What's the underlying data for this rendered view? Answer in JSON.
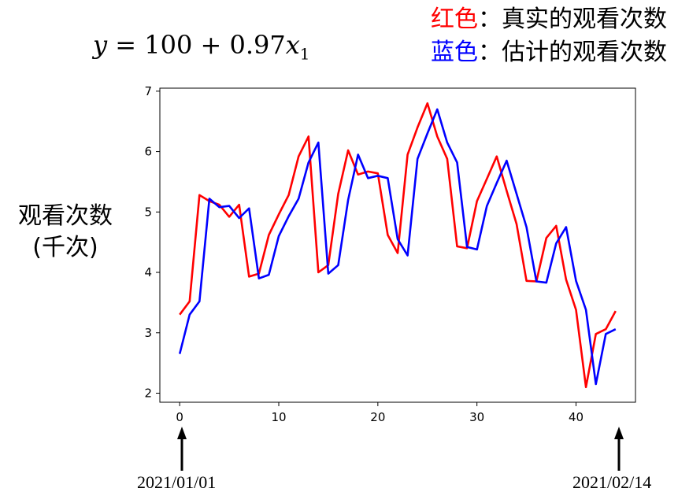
{
  "formula": {
    "y": "y",
    "eq": " = 100 + 0.97",
    "x": "x",
    "sub": "1"
  },
  "legend": {
    "items": [
      {
        "key": "红色",
        "colon": "：",
        "text": "真实的观看次数",
        "color": "#ff0000"
      },
      {
        "key": "蓝色",
        "colon": "：",
        "text": "估计的观看次数",
        "color": "#0000ff"
      }
    ]
  },
  "ylabel": {
    "line1": "观看次数",
    "line2": "(千次)"
  },
  "annotations": {
    "start_date": "2021/01/01",
    "end_date": "2021/02/14"
  },
  "chart_data": {
    "type": "line",
    "title": "",
    "xlabel": "",
    "ylabel": "观看次数 (千次)",
    "xlim": [
      -2,
      46
    ],
    "ylim": [
      1.85,
      7.05
    ],
    "xticks": [
      0,
      10,
      20,
      30,
      40
    ],
    "yticks": [
      2,
      3,
      4,
      5,
      6,
      7
    ],
    "grid": false,
    "series": [
      {
        "name": "真实的观看次数",
        "color": "#ff0000",
        "x": [
          0,
          1,
          2,
          3,
          4,
          5,
          6,
          7,
          8,
          9,
          10,
          11,
          12,
          13,
          14,
          15,
          16,
          17,
          18,
          19,
          20,
          21,
          22,
          23,
          24,
          25,
          26,
          27,
          28,
          29,
          30,
          31,
          32,
          33,
          34,
          35,
          36,
          37,
          38,
          39,
          40,
          41,
          42,
          43,
          44
        ],
        "values": [
          3.3,
          3.52,
          5.28,
          5.18,
          5.12,
          4.92,
          5.12,
          3.93,
          3.98,
          4.62,
          4.96,
          5.28,
          5.92,
          6.25,
          4.0,
          4.12,
          5.3,
          6.02,
          5.62,
          5.67,
          5.64,
          4.62,
          4.32,
          5.95,
          6.4,
          6.8,
          6.25,
          5.88,
          4.43,
          4.4,
          5.18,
          5.55,
          5.92,
          5.35,
          4.8,
          3.86,
          3.85,
          4.57,
          4.77,
          3.88,
          3.38,
          2.1,
          2.98,
          3.06,
          3.36
        ]
      },
      {
        "name": "估计的观看次数",
        "color": "#0000ff",
        "x": [
          0,
          1,
          2,
          3,
          4,
          5,
          6,
          7,
          8,
          9,
          10,
          11,
          12,
          13,
          14,
          15,
          16,
          17,
          18,
          19,
          20,
          21,
          22,
          23,
          24,
          25,
          26,
          27,
          28,
          29,
          30,
          31,
          32,
          33,
          34,
          35,
          36,
          37,
          38,
          39,
          40,
          41,
          42,
          43,
          44
        ],
        "values": [
          2.65,
          3.3,
          3.52,
          5.22,
          5.08,
          5.1,
          4.9,
          5.06,
          3.9,
          3.96,
          4.6,
          4.93,
          5.22,
          5.82,
          6.15,
          3.98,
          4.12,
          5.2,
          5.95,
          5.56,
          5.6,
          5.56,
          4.55,
          4.28,
          5.88,
          6.3,
          6.7,
          6.15,
          5.82,
          4.42,
          4.38,
          5.1,
          5.48,
          5.85,
          5.3,
          4.75,
          3.85,
          3.83,
          4.48,
          4.75,
          3.86,
          3.38,
          2.15,
          2.98,
          3.06
        ]
      }
    ]
  }
}
